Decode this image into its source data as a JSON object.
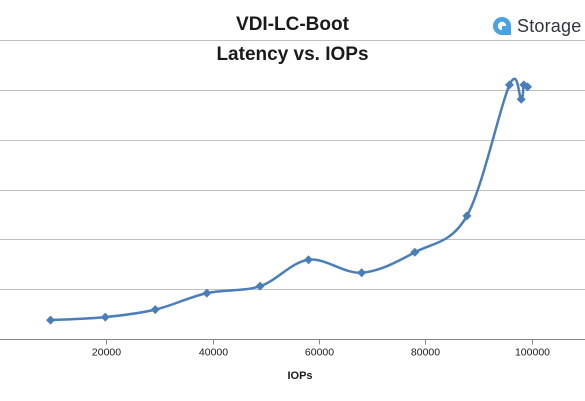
{
  "brand": {
    "name": "Storage",
    "accent_color": "#4aa3df",
    "icon": "storage-review-logo-icon"
  },
  "colors": {
    "series_line": "#4a7ebb",
    "gridline": "#bfbfbf",
    "axis_line": "#868686",
    "text": "#1a1a1a"
  },
  "chart_data": {
    "type": "line",
    "title": "VDI-LC-Boot",
    "subtitle": "Latency vs. IOPs",
    "xlabel": "IOPs",
    "ylabel": "",
    "xlim": [
      0,
      110000
    ],
    "ylim": [
      0,
      6
    ],
    "x_ticks": [
      20000,
      40000,
      60000,
      80000,
      100000
    ],
    "x_tick_labels": [
      "20000",
      "40000",
      "60000",
      "80000",
      "100000"
    ],
    "y_gridlines": [
      1,
      2,
      3,
      4,
      5,
      6
    ],
    "y_tick_labels_visible": false,
    "grid": "horizontal",
    "legend": "none",
    "smoothed": true,
    "marker": "diamond",
    "series": [
      {
        "x": [
          9500,
          19800,
          29200,
          38900,
          48900,
          58000,
          68000,
          78000,
          87800,
          95800,
          98000,
          98500,
          99200
        ],
        "y": [
          0.38,
          0.44,
          0.59,
          0.92,
          1.06,
          1.59,
          1.33,
          1.74,
          2.47,
          5.1,
          4.81,
          5.1,
          5.06
        ]
      }
    ]
  }
}
